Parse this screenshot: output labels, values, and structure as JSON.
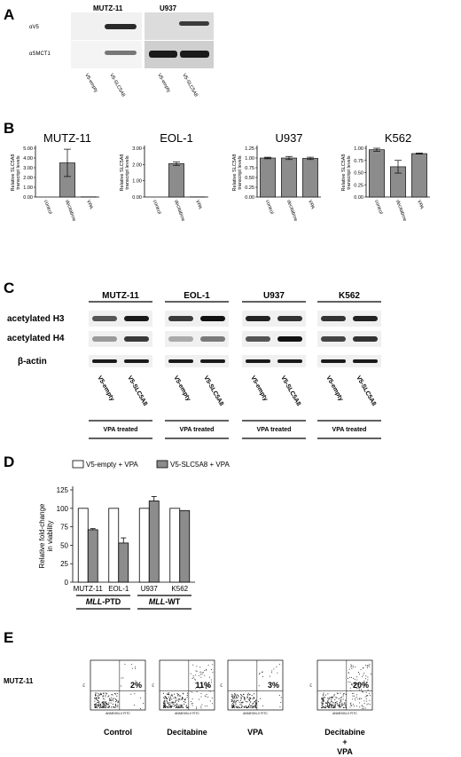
{
  "panel_letters": [
    "A",
    "B",
    "C",
    "D",
    "E"
  ],
  "panel_a": {
    "cell_lines": [
      "MUTZ-11",
      "U937"
    ],
    "row_labels": [
      "αV5",
      "αSMCT1"
    ],
    "lane_labels": [
      "V5-empty",
      "V5-SLC5A8"
    ]
  },
  "chart_data": [
    {
      "type": "bar",
      "title": "MUTZ-11",
      "categories": [
        "control",
        "decitabine",
        "VPA"
      ],
      "values": [
        0.0,
        3.5,
        0.02
      ],
      "errors": [
        0.0,
        1.4,
        0.0
      ],
      "ylabel": "Relative SLC5A8 transcript levels",
      "yticks": [
        "0.00",
        "1.00",
        "2.00",
        "3.00",
        "4.00",
        "5.00"
      ],
      "ylim": [
        0,
        5
      ]
    },
    {
      "type": "bar",
      "title": "EOL-1",
      "categories": [
        "control",
        "decitabine",
        "VPA"
      ],
      "values": [
        0.0,
        2.05,
        0.01
      ],
      "errors": [
        0.0,
        0.1,
        0.0
      ],
      "ylabel": "Relative SLC5A8 transcript levels",
      "yticks": [
        "0.00",
        "1.00",
        "2.00",
        "3.00"
      ],
      "ylim": [
        0,
        3
      ]
    },
    {
      "type": "bar",
      "title": "U937",
      "categories": [
        "control",
        "decitabine",
        "VPA"
      ],
      "values": [
        1.0,
        1.0,
        0.99
      ],
      "errors": [
        0.02,
        0.04,
        0.03
      ],
      "ylabel": "Relative SLC5A8 transcript levels",
      "yticks": [
        "0.00",
        "0.25",
        "0.50",
        "0.75",
        "1.00",
        "1.25"
      ],
      "ylim": [
        0,
        1.25
      ]
    },
    {
      "type": "bar",
      "title": "K562",
      "categories": [
        "control",
        "decitabine",
        "VPA"
      ],
      "values": [
        0.97,
        0.62,
        0.89
      ],
      "errors": [
        0.03,
        0.13,
        0.01
      ],
      "ylabel": "Relative SLC5A8 transcript levels",
      "yticks": [
        "0.00",
        "0.25",
        "0.50",
        "0.75",
        "1.00"
      ],
      "ylim": [
        0,
        1.0
      ]
    },
    {
      "type": "bar",
      "title": "",
      "categories": [
        "MUTZ-11",
        "EOL-1",
        "U937",
        "K562"
      ],
      "series": [
        {
          "name": "V5-empty + VPA",
          "values": [
            100,
            100,
            100,
            100
          ],
          "errors": [
            0,
            0,
            0,
            0
          ],
          "color": "#ffffff"
        },
        {
          "name": "V5-SLC5A8 + VPA",
          "values": [
            71,
            53,
            110,
            97
          ],
          "errors": [
            1.5,
            7,
            6,
            0
          ],
          "color": "#8c8c8c"
        }
      ],
      "ylabel": "Relative fold-change in viability",
      "yticks": [
        "0",
        "25",
        "50",
        "75",
        "100",
        "125"
      ],
      "ylim": [
        0,
        125
      ],
      "groups": [
        {
          "label_italic": "MLL",
          "label_rest": "-PTD",
          "categories": [
            "MUTZ-11",
            "EOL-1"
          ]
        },
        {
          "label_italic": "MLL",
          "label_rest": "-WT",
          "categories": [
            "U937",
            "K562"
          ]
        }
      ]
    }
  ],
  "panel_c": {
    "cell_lines": [
      "MUTZ-11",
      "EOL-1",
      "U937",
      "K562"
    ],
    "row_labels": [
      "acetylated H3",
      "acetylated H4",
      "β-actin"
    ],
    "lane_labels": [
      "V5-empty",
      "V5-SLC5A8"
    ],
    "treatment_label": "VPA treated"
  },
  "panel_e": {
    "row_label": "MUTZ-11",
    "axis_label": "ANNEXIN-V FITC",
    "y_axis_label": "PI",
    "plots": [
      {
        "label": "Control",
        "percent": "2%"
      },
      {
        "label": "Decitabine",
        "percent": "11%"
      },
      {
        "label": "VPA",
        "percent": "3%"
      },
      {
        "label": "Decitabine\n+\nVPA",
        "percent": "20%"
      }
    ]
  }
}
